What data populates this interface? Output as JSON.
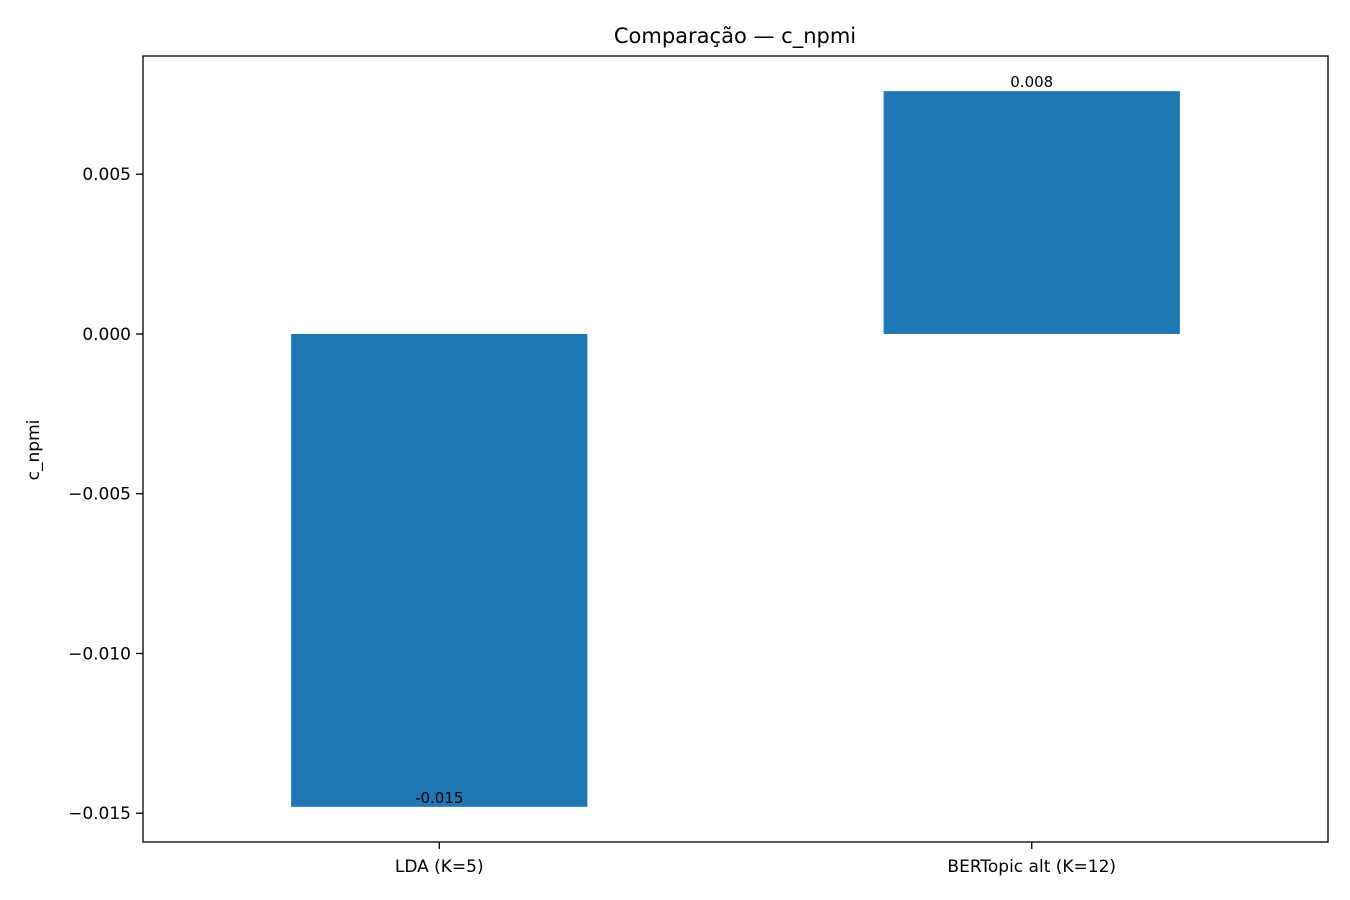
{
  "chart_data": {
    "type": "bar",
    "title": "Comparação — c_npmi",
    "xlabel": "",
    "ylabel": "c_npmi",
    "categories": [
      "LDA (K=5)",
      "BERTopic alt (K=12)"
    ],
    "values": [
      -0.0148,
      0.0076
    ],
    "data_labels": [
      "-0.015",
      "0.008"
    ],
    "ylim": [
      -0.0159,
      0.0087
    ],
    "yticks": [
      0.005,
      0.0,
      -0.005,
      -0.01,
      -0.015
    ],
    "ytick_labels": [
      "0.005",
      "0.000",
      "−0.005",
      "−0.010",
      "−0.015"
    ],
    "bar_color": "#1f77b4",
    "grid": false,
    "legend": "none"
  }
}
